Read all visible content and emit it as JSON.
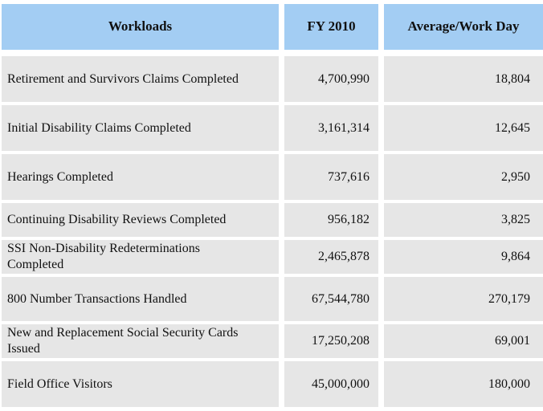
{
  "colors": {
    "header_bg": "#A3CDF3",
    "row_bg": "#E6E6E6",
    "text": "#111111",
    "gap": "#FFFFFF"
  },
  "table": {
    "columns": [
      "Workloads",
      "FY 2010",
      "Average/Work Day"
    ],
    "rows": [
      {
        "workload": "Retirement and Survivors Claims Completed",
        "fy2010": "4,700,990",
        "avg_per_work_day": "18,804"
      },
      {
        "workload": "Initial Disability Claims Completed",
        "fy2010": "3,161,314",
        "avg_per_work_day": "12,645"
      },
      {
        "workload": "Hearings Completed",
        "fy2010": "737,616",
        "avg_per_work_day": "2,950"
      },
      {
        "workload": "Continuing Disability Reviews Completed",
        "fy2010": "956,182",
        "avg_per_work_day": "3,825"
      },
      {
        "workload": "SSI Non-Disability Redeterminations\nCompleted",
        "fy2010": "2,465,878",
        "avg_per_work_day": "9,864"
      },
      {
        "workload": "800 Number Transactions Handled",
        "fy2010": "67,544,780",
        "avg_per_work_day": "270,179"
      },
      {
        "workload": "New and Replacement Social Security Cards\nIssued",
        "fy2010": "17,250,208",
        "avg_per_work_day": "69,001"
      },
      {
        "workload": "Field Office Visitors",
        "fy2010": "45,000,000",
        "avg_per_work_day": "180,000"
      }
    ]
  }
}
